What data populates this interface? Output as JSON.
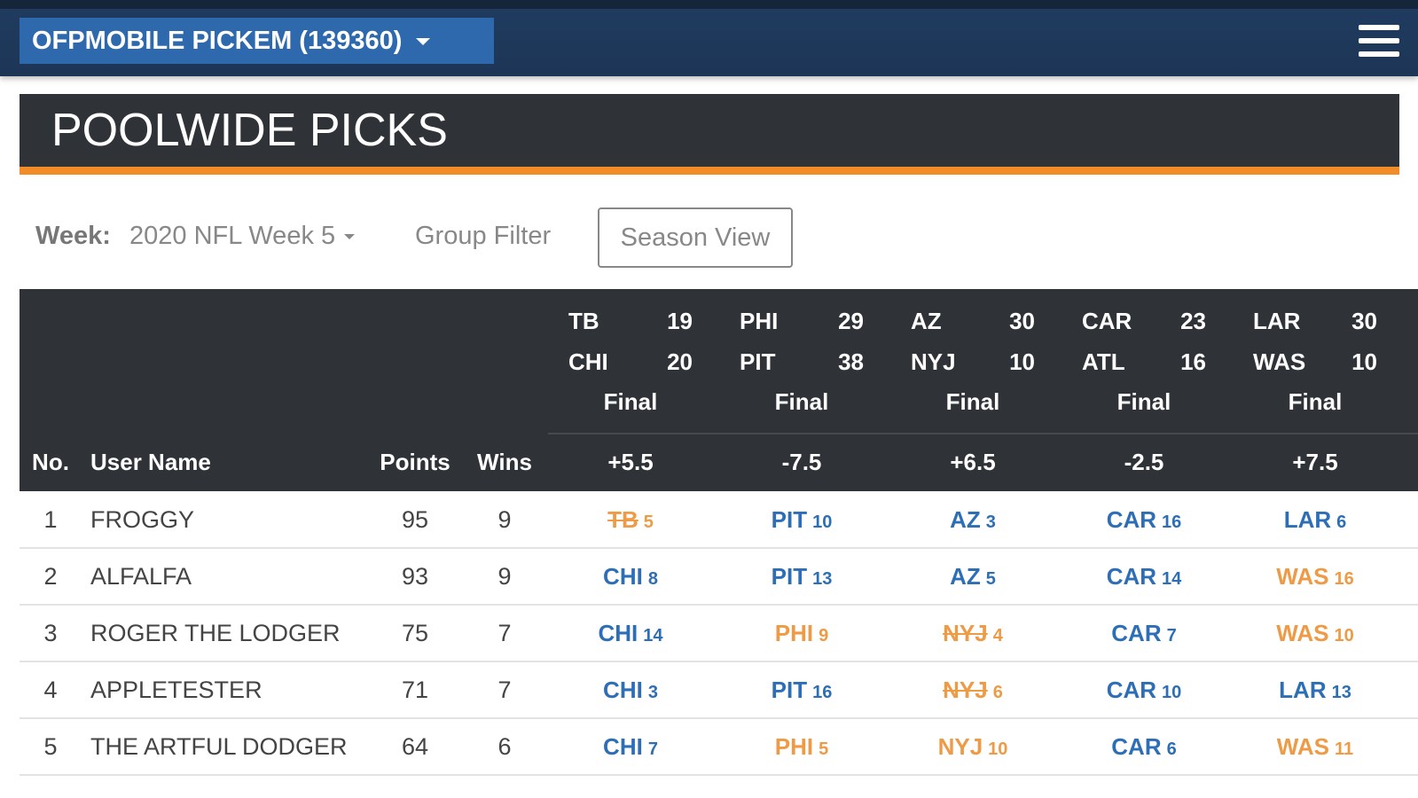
{
  "navbar": {
    "pool_name": "OFPMOBILE PICKEM (139360)"
  },
  "header": {
    "title": "POOLWIDE PICKS"
  },
  "filters": {
    "week_label": "Week:",
    "week_value": "2020 NFL Week 5",
    "group_filter": "Group Filter",
    "season_view": "Season View"
  },
  "table": {
    "columns": [
      "No.",
      "User Name",
      "Points",
      "Wins"
    ],
    "games": [
      {
        "away": "TB",
        "away_score": 19,
        "home": "CHI",
        "home_score": 20,
        "status": "Final",
        "spread": "+5.5"
      },
      {
        "away": "PHI",
        "away_score": 29,
        "home": "PIT",
        "home_score": 38,
        "status": "Final",
        "spread": "-7.5"
      },
      {
        "away": "AZ",
        "away_score": 30,
        "home": "NYJ",
        "home_score": 10,
        "status": "Final",
        "spread": "+6.5"
      },
      {
        "away": "CAR",
        "away_score": 23,
        "home": "ATL",
        "home_score": 16,
        "status": "Final",
        "spread": "-2.5"
      },
      {
        "away": "LAR",
        "away_score": 30,
        "home": "WAS",
        "home_score": 10,
        "status": "Final",
        "spread": "+7.5"
      }
    ],
    "rows": [
      {
        "no": 1,
        "user": "FROGGY",
        "points": 95,
        "wins": 9,
        "picks": [
          {
            "team": "TB",
            "points": 5,
            "correct": false,
            "struck": true
          },
          {
            "team": "PIT",
            "points": 10,
            "correct": true,
            "struck": false
          },
          {
            "team": "AZ",
            "points": 3,
            "correct": true,
            "struck": false
          },
          {
            "team": "CAR",
            "points": 16,
            "correct": true,
            "struck": false
          },
          {
            "team": "LAR",
            "points": 6,
            "correct": true,
            "struck": false
          }
        ]
      },
      {
        "no": 2,
        "user": "ALFALFA",
        "points": 93,
        "wins": 9,
        "picks": [
          {
            "team": "CHI",
            "points": 8,
            "correct": true,
            "struck": false
          },
          {
            "team": "PIT",
            "points": 13,
            "correct": true,
            "struck": false
          },
          {
            "team": "AZ",
            "points": 5,
            "correct": true,
            "struck": false
          },
          {
            "team": "CAR",
            "points": 14,
            "correct": true,
            "struck": false
          },
          {
            "team": "WAS",
            "points": 16,
            "correct": false,
            "struck": false
          }
        ]
      },
      {
        "no": 3,
        "user": "ROGER THE LODGER",
        "points": 75,
        "wins": 7,
        "picks": [
          {
            "team": "CHI",
            "points": 14,
            "correct": true,
            "struck": false
          },
          {
            "team": "PHI",
            "points": 9,
            "correct": false,
            "struck": false
          },
          {
            "team": "NYJ",
            "points": 4,
            "correct": false,
            "struck": true
          },
          {
            "team": "CAR",
            "points": 7,
            "correct": true,
            "struck": false
          },
          {
            "team": "WAS",
            "points": 10,
            "correct": false,
            "struck": false
          }
        ]
      },
      {
        "no": 4,
        "user": "APPLETESTER",
        "points": 71,
        "wins": 7,
        "picks": [
          {
            "team": "CHI",
            "points": 3,
            "correct": true,
            "struck": false
          },
          {
            "team": "PIT",
            "points": 16,
            "correct": true,
            "struck": false
          },
          {
            "team": "NYJ",
            "points": 6,
            "correct": false,
            "struck": true
          },
          {
            "team": "CAR",
            "points": 10,
            "correct": true,
            "struck": false
          },
          {
            "team": "LAR",
            "points": 13,
            "correct": true,
            "struck": false
          }
        ]
      },
      {
        "no": 5,
        "user": "THE ARTFUL DODGER",
        "points": 64,
        "wins": 6,
        "picks": [
          {
            "team": "CHI",
            "points": 7,
            "correct": true,
            "struck": false
          },
          {
            "team": "PHI",
            "points": 5,
            "correct": false,
            "struck": false
          },
          {
            "team": "NYJ",
            "points": 10,
            "correct": false,
            "struck": false
          },
          {
            "team": "CAR",
            "points": 6,
            "correct": true,
            "struck": false
          },
          {
            "team": "WAS",
            "points": 11,
            "correct": false,
            "struck": false
          }
        ]
      }
    ]
  }
}
